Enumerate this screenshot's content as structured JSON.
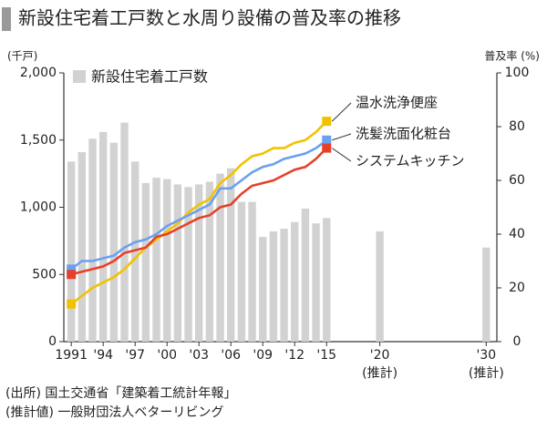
{
  "chart_data": {
    "type": "combo",
    "title": "新設住宅着工戸数と水周り設備の普及率の推移",
    "y_label": "(千戸)",
    "y2_label": "普及率 (%)",
    "xlim": [
      1990.3,
      2031
    ],
    "xticks": [
      {
        "value": 1991,
        "label": "1991"
      },
      {
        "value": 1994,
        "label": "'94"
      },
      {
        "value": 1997,
        "label": "'97"
      },
      {
        "value": 2000,
        "label": "'00"
      },
      {
        "value": 2003,
        "label": "'03"
      },
      {
        "value": 2006,
        "label": "'06"
      },
      {
        "value": 2009,
        "label": "'09"
      },
      {
        "value": 2012,
        "label": "'12"
      },
      {
        "value": 2015,
        "label": "'15"
      },
      {
        "value": 2020,
        "label": "'20"
      },
      {
        "value": 2030,
        "label": "'30"
      }
    ],
    "estimate_label": "(推計)",
    "estimate_ticks": [
      9,
      10
    ],
    "ylim": [
      0,
      2000
    ],
    "yticks": [
      0,
      500,
      {
        "value": 1000,
        "label": "1,000"
      },
      {
        "value": 1500,
        "label": "1,500"
      },
      {
        "value": 2000,
        "label": "2,000"
      }
    ],
    "y2lim": [
      0,
      100
    ],
    "y2ticks": [
      0,
      20,
      40,
      60,
      80,
      100
    ],
    "series": [
      {
        "name": "新設住宅着工戸数",
        "type": "bar",
        "color": "#d2d2d2",
        "x": [
          1991,
          1992,
          1993,
          1994,
          1995,
          1996,
          1997,
          1998,
          1999,
          2000,
          2001,
          2002,
          2003,
          2004,
          2005,
          2006,
          2007,
          2008,
          2009,
          2010,
          2011,
          2012,
          2013,
          2014,
          2015,
          2020,
          2030
        ],
        "values": [
          1340,
          1410,
          1510,
          1560,
          1480,
          1630,
          1340,
          1180,
          1220,
          1210,
          1170,
          1150,
          1170,
          1190,
          1250,
          1290,
          1040,
          1040,
          780,
          820,
          840,
          890,
          990,
          880,
          920,
          820,
          700
        ]
      },
      {
        "name": "温水洗浄便座",
        "type": "line",
        "axis": "y2",
        "color": "#f2c200",
        "x": [
          1991,
          1992,
          1993,
          1994,
          1995,
          1996,
          1997,
          1998,
          1999,
          2000,
          2001,
          2002,
          2003,
          2004,
          2005,
          2006,
          2007,
          2008,
          2009,
          2010,
          2011,
          2012,
          2013,
          2014,
          2015
        ],
        "values": [
          14,
          17,
          20,
          22,
          24,
          27,
          31,
          35,
          38,
          41,
          44,
          48,
          51,
          53,
          59,
          62,
          66,
          69,
          70,
          72,
          72,
          74,
          75,
          78,
          82
        ]
      },
      {
        "name": "洗髪洗面化粧台",
        "type": "line",
        "axis": "y2",
        "color": "#6aa0f0",
        "x": [
          1991,
          1992,
          1993,
          1994,
          1995,
          1996,
          1997,
          1998,
          1999,
          2000,
          2001,
          2002,
          2003,
          2004,
          2005,
          2006,
          2007,
          2008,
          2009,
          2010,
          2011,
          2012,
          2013,
          2014,
          2015
        ],
        "values": [
          27,
          30,
          30,
          31,
          32,
          35,
          37,
          38,
          40,
          43,
          45,
          47,
          49,
          51,
          57,
          57,
          60,
          63,
          65,
          66,
          68,
          69,
          70,
          72,
          75
        ]
      },
      {
        "name": "システムキッチン",
        "type": "line",
        "axis": "y2",
        "color": "#e6402a",
        "x": [
          1991,
          1992,
          1993,
          1994,
          1995,
          1996,
          1997,
          1998,
          1999,
          2000,
          2001,
          2002,
          2003,
          2004,
          2005,
          2006,
          2007,
          2008,
          2009,
          2010,
          2011,
          2012,
          2013,
          2014,
          2015
        ],
        "values": [
          25,
          26,
          27,
          28,
          30,
          33,
          34,
          35,
          39,
          40,
          42,
          44,
          46,
          47,
          50,
          51,
          55,
          58,
          59,
          60,
          62,
          64,
          65,
          68,
          72
        ]
      }
    ],
    "notes": [
      "(出所) 国土交通省「建築着工統計年報」",
      "(推計値) 一般財団法人ベターリビング"
    ]
  }
}
